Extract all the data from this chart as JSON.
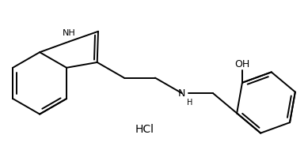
{
  "background_color": "#ffffff",
  "line_color": "#000000",
  "line_width": 1.4,
  "font_size": 9,
  "label_NH": "NH",
  "label_H": "H",
  "label_N": "N",
  "label_OH": "OH",
  "label_HCl": "HCl",
  "figsize": [
    3.89,
    2.04
  ],
  "dpi": 100
}
